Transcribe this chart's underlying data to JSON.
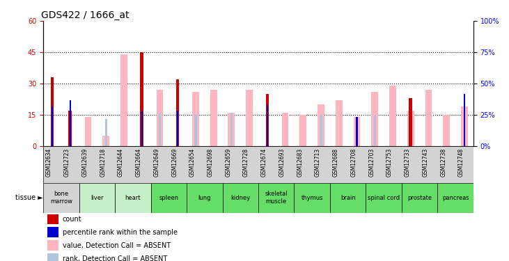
{
  "title": "GDS422 / 1666_at",
  "samples": [
    "GSM12634",
    "GSM12723",
    "GSM12639",
    "GSM12718",
    "GSM12644",
    "GSM12664",
    "GSM12649",
    "GSM12669",
    "GSM12654",
    "GSM12698",
    "GSM12659",
    "GSM12728",
    "GSM12674",
    "GSM12693",
    "GSM12683",
    "GSM12713",
    "GSM12688",
    "GSM12708",
    "GSM12703",
    "GSM12753",
    "GSM12733",
    "GSM12743",
    "GSM12738",
    "GSM12748"
  ],
  "tissues": [
    {
      "name": "bone\nmarrow",
      "span": [
        0,
        2
      ],
      "color": "#d3d3d3"
    },
    {
      "name": "liver",
      "span": [
        2,
        4
      ],
      "color": "#c8f0c8"
    },
    {
      "name": "heart",
      "span": [
        4,
        6
      ],
      "color": "#c8f0c8"
    },
    {
      "name": "spleen",
      "span": [
        6,
        8
      ],
      "color": "#66dd66"
    },
    {
      "name": "lung",
      "span": [
        8,
        10
      ],
      "color": "#66dd66"
    },
    {
      "name": "kidney",
      "span": [
        10,
        12
      ],
      "color": "#66dd66"
    },
    {
      "name": "skeletal\nmuscle",
      "span": [
        12,
        14
      ],
      "color": "#66dd66"
    },
    {
      "name": "thymus",
      "span": [
        14,
        16
      ],
      "color": "#66dd66"
    },
    {
      "name": "brain",
      "span": [
        16,
        18
      ],
      "color": "#66dd66"
    },
    {
      "name": "spinal cord",
      "span": [
        18,
        20
      ],
      "color": "#66dd66"
    },
    {
      "name": "prostate",
      "span": [
        20,
        22
      ],
      "color": "#66dd66"
    },
    {
      "name": "pancreas",
      "span": [
        22,
        24
      ],
      "color": "#66dd66"
    }
  ],
  "count_red": [
    33,
    17,
    null,
    null,
    null,
    45,
    null,
    32,
    null,
    null,
    null,
    null,
    25,
    null,
    null,
    null,
    null,
    null,
    null,
    null,
    23,
    null,
    null,
    null
  ],
  "rank_blue": [
    19,
    22,
    null,
    null,
    null,
    17,
    null,
    17,
    null,
    null,
    null,
    null,
    20,
    null,
    null,
    null,
    null,
    14,
    null,
    null,
    null,
    null,
    null,
    25
  ],
  "value_pink": [
    null,
    null,
    14,
    5,
    44,
    null,
    27,
    null,
    26,
    27,
    16,
    27,
    null,
    16,
    15,
    20,
    22,
    14,
    26,
    29,
    17,
    27,
    15,
    19
  ],
  "rank_lightblue": [
    null,
    null,
    null,
    13,
    null,
    null,
    16,
    null,
    15,
    null,
    16,
    null,
    null,
    null,
    null,
    15,
    null,
    null,
    15,
    null,
    null,
    null,
    null,
    null
  ],
  "ylim_left": [
    0,
    60
  ],
  "ylim_right": [
    0,
    100
  ],
  "yticks_left": [
    0,
    15,
    30,
    45,
    60
  ],
  "yticks_right": [
    0,
    25,
    50,
    75,
    100
  ],
  "ytick_labels_right": [
    "0%",
    "25%",
    "50%",
    "75%",
    "100%"
  ],
  "color_red": "#cc0000",
  "color_blue": "#0000cc",
  "color_pink": "#ffb6c1",
  "color_lightblue": "#b0c4de",
  "color_bg_gray": "#d3d3d3",
  "grid_levels": [
    15,
    30,
    45
  ],
  "xtick_bg": "#d3d3d3",
  "legend_items": [
    {
      "color": "#cc0000",
      "label": "count"
    },
    {
      "color": "#0000cc",
      "label": "percentile rank within the sample"
    },
    {
      "color": "#ffb6c1",
      "label": "value, Detection Call = ABSENT"
    },
    {
      "color": "#b0c4de",
      "label": "rank, Detection Call = ABSENT"
    }
  ]
}
